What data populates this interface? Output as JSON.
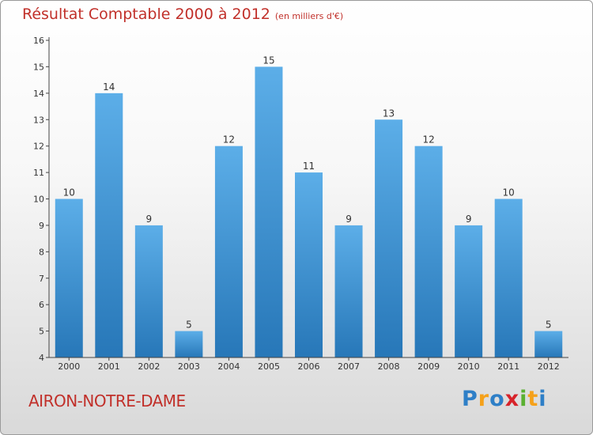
{
  "title": "Résultat Comptable 2000 à 2012",
  "title_unit": "(en milliers d'€)",
  "town": "AIRON-NOTRE-DAME",
  "logo": {
    "letters": [
      "P",
      "r",
      "o",
      "x",
      "i",
      "t",
      "i"
    ],
    "colors": [
      "#2e7fc7",
      "#f5a11a",
      "#2e7fc7",
      "#d7232a",
      "#5ab031",
      "#f5a11a",
      "#2e7fc7"
    ]
  },
  "colors": {
    "bar_top": "#5caee8",
    "bar_bottom": "#2777b8",
    "axis": "#444444",
    "text": "#333333",
    "title": "#c1302a"
  },
  "chart_data": {
    "type": "bar",
    "title": "Résultat Comptable 2000 à 2012",
    "subtitle": "(en milliers d'€)",
    "xlabel": "",
    "ylabel": "",
    "categories": [
      "2000",
      "2001",
      "2002",
      "2003",
      "2004",
      "2005",
      "2006",
      "2007",
      "2008",
      "2009",
      "2010",
      "2011",
      "2012"
    ],
    "values": [
      10,
      14,
      9,
      5,
      12,
      15,
      11,
      9,
      13,
      12,
      9,
      10,
      5
    ],
    "ylim": [
      4,
      16
    ],
    "yticks": [
      4,
      5,
      6,
      7,
      8,
      9,
      10,
      11,
      12,
      13,
      14,
      15,
      16
    ],
    "grid": false,
    "data_labels": true
  }
}
